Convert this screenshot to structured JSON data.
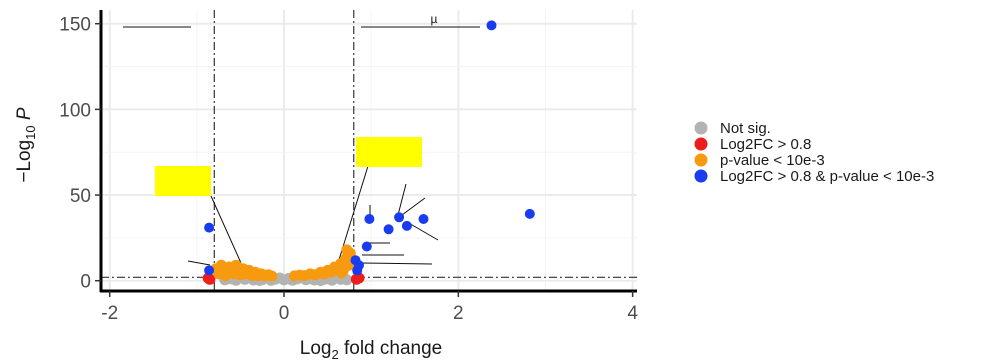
{
  "chart_data": {
    "type": "scatter",
    "title": "",
    "xlabel_main": "Log",
    "xlabel_sub": "2",
    "xlabel_rest": " fold change",
    "ylabel_prefix": "−Log",
    "ylabel_sub": "10",
    "ylabel_var": "P",
    "xlim": [
      -2.1,
      4.05
    ],
    "ylim": [
      -6,
      158
    ],
    "x_ticks": [
      -2,
      0,
      2,
      4
    ],
    "y_ticks": [
      0,
      50,
      100,
      150
    ],
    "x_tick_labels": [
      "-2",
      "0",
      "2",
      "4"
    ],
    "y_tick_labels": [
      "0",
      "50",
      "100",
      "150"
    ],
    "grid": true,
    "fc_cutoff": 0.8,
    "p_cutoff_y": 2,
    "annotation_text": "µ",
    "legend": {
      "position": "right",
      "entries": [
        {
          "label": "Not sig.",
          "color": "#b3b3b3"
        },
        {
          "label": "Log2FC > 0.8",
          "color": "#ee1c1c"
        },
        {
          "label": "p-value < 10e-3",
          "color": "#f79a0f"
        },
        {
          "label": "Log2FC > 0.8 & p-value < 10e-3",
          "color": "#1a3cf0"
        }
      ]
    },
    "series": [
      {
        "name": "Not sig.",
        "color": "#b3b3b3",
        "points": [
          [
            -0.68,
            0.5
          ],
          [
            -0.62,
            1.2
          ],
          [
            -0.55,
            0.3
          ],
          [
            -0.5,
            1.8
          ],
          [
            -0.45,
            0.8
          ],
          [
            -0.4,
            1.5
          ],
          [
            -0.35,
            0.4
          ],
          [
            -0.3,
            1.1
          ],
          [
            -0.25,
            0.6
          ],
          [
            -0.2,
            1.4
          ],
          [
            -0.15,
            0.2
          ],
          [
            -0.1,
            0.9
          ],
          [
            -0.05,
            1.6
          ],
          [
            0,
            0.5
          ],
          [
            0.05,
            1.3
          ],
          [
            0.1,
            0.3
          ],
          [
            0.15,
            1.0
          ],
          [
            0.2,
            1.7
          ],
          [
            0.25,
            0.6
          ],
          [
            0.3,
            1.2
          ],
          [
            0.35,
            0.4
          ],
          [
            0.4,
            1.5
          ],
          [
            0.45,
            0.7
          ],
          [
            0.5,
            1.1
          ],
          [
            0.55,
            0.3
          ],
          [
            0.6,
            1.6
          ],
          [
            0.65,
            0.8
          ],
          [
            0.7,
            1.3
          ],
          [
            -0.58,
            0.9
          ],
          [
            -0.28,
            0.2
          ],
          [
            0.08,
            0.7
          ],
          [
            0.42,
            0.1
          ],
          [
            0.72,
            0.5
          ]
        ]
      },
      {
        "name": "Log2FC > 0.8",
        "color": "#ee1c1c",
        "points": [
          [
            -0.85,
            0.8
          ],
          [
            -0.87,
            1.5
          ],
          [
            0.83,
            0.9
          ],
          [
            0.86,
            1.6
          ]
        ]
      },
      {
        "name": "p-value < 10e-3",
        "color": "#f79a0f",
        "points": [
          [
            -0.78,
            7
          ],
          [
            -0.75,
            4
          ],
          [
            -0.72,
            9
          ],
          [
            -0.7,
            5
          ],
          [
            -0.67,
            3
          ],
          [
            -0.63,
            8
          ],
          [
            -0.6,
            6
          ],
          [
            -0.57,
            4
          ],
          [
            -0.55,
            9
          ],
          [
            -0.52,
            5
          ],
          [
            -0.5,
            3.5
          ],
          [
            -0.47,
            7
          ],
          [
            -0.44,
            4
          ],
          [
            -0.4,
            6
          ],
          [
            -0.36,
            3
          ],
          [
            -0.33,
            5
          ],
          [
            -0.3,
            3
          ],
          [
            -0.26,
            4
          ],
          [
            -0.22,
            2.8
          ],
          [
            -0.18,
            3.5
          ],
          [
            -0.14,
            2.7
          ],
          [
            0.12,
            2.8
          ],
          [
            0.18,
            3.3
          ],
          [
            0.24,
            3
          ],
          [
            0.3,
            4
          ],
          [
            0.36,
            3.5
          ],
          [
            0.42,
            5
          ],
          [
            0.46,
            4
          ],
          [
            0.5,
            6
          ],
          [
            0.54,
            5
          ],
          [
            0.58,
            8
          ],
          [
            0.62,
            7
          ],
          [
            0.65,
            10
          ],
          [
            0.68,
            6
          ],
          [
            0.71,
            13
          ],
          [
            0.74,
            9
          ],
          [
            0.76,
            16
          ],
          [
            0.78,
            11
          ],
          [
            0.72,
            18
          ],
          [
            0.66,
            4.5
          ]
        ]
      },
      {
        "name": "Log2FC > 0.8 & p-value < 10e-3",
        "color": "#1a3cf0",
        "points": [
          [
            2.38,
            149
          ],
          [
            2.82,
            39
          ],
          [
            0.98,
            36
          ],
          [
            1.32,
            37
          ],
          [
            1.6,
            36
          ],
          [
            1.41,
            32
          ],
          [
            1.2,
            30
          ],
          [
            -0.86,
            31
          ],
          [
            0.95,
            20
          ],
          [
            0.82,
            12
          ],
          [
            0.86,
            9
          ],
          [
            0.84,
            6
          ],
          [
            -0.86,
            6
          ]
        ]
      }
    ]
  }
}
